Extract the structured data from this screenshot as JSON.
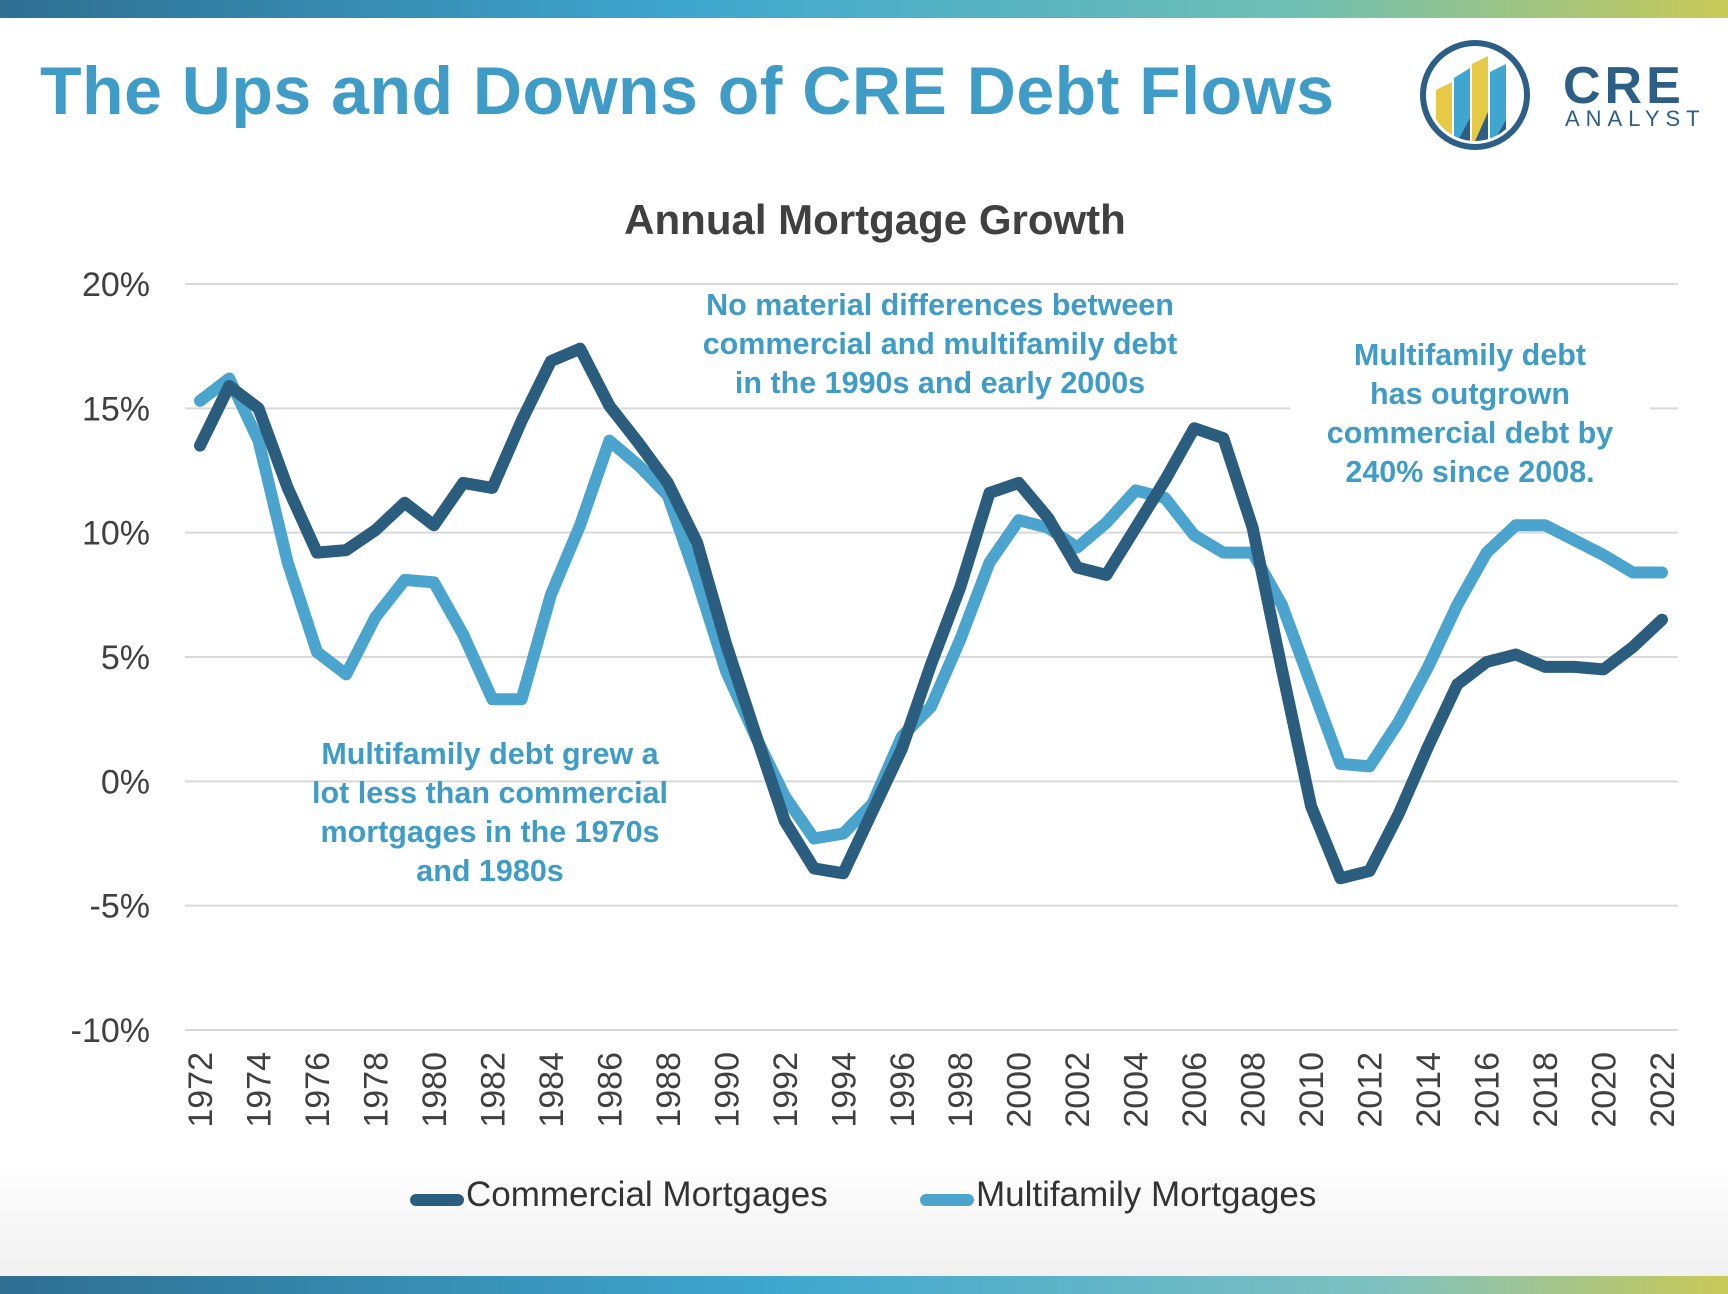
{
  "slide": {
    "title": "The Ups and Downs of CRE Debt Flows"
  },
  "logo": {
    "brand": "CRE",
    "tagline": "ANALYST",
    "colors": {
      "ring": "#2d5f86",
      "bars": [
        "#e6c945",
        "#3fa7cf",
        "#2d5f86"
      ]
    }
  },
  "chart_data": {
    "type": "line",
    "title": "Annual Mortgage Growth",
    "x": [
      1972,
      1973,
      1974,
      1975,
      1976,
      1977,
      1978,
      1979,
      1980,
      1981,
      1982,
      1983,
      1984,
      1985,
      1986,
      1987,
      1988,
      1989,
      1990,
      1991,
      1992,
      1993,
      1994,
      1995,
      1996,
      1997,
      1998,
      1999,
      2000,
      2001,
      2002,
      2003,
      2004,
      2005,
      2006,
      2007,
      2008,
      2009,
      2010,
      2011,
      2012,
      2013,
      2014,
      2015,
      2016,
      2017,
      2018,
      2019,
      2020,
      2021,
      2022
    ],
    "x_tick_labels": [
      "1972",
      "1974",
      "1976",
      "1978",
      "1980",
      "1982",
      "1984",
      "1986",
      "1988",
      "1990",
      "1992",
      "1994",
      "1996",
      "1998",
      "2000",
      "2002",
      "2004",
      "2006",
      "2008",
      "2010",
      "2012",
      "2014",
      "2016",
      "2018",
      "2020",
      "2022"
    ],
    "y_tick_labels": [
      "20%",
      "15%",
      "10%",
      "5%",
      "0%",
      "-5%",
      "-10%"
    ],
    "ylim": [
      -10,
      20
    ],
    "grid": true,
    "legend_position": "bottom",
    "series": [
      {
        "name": "Commercial Mortgages",
        "color": "#2b5d7e",
        "values": [
          13.5,
          15.9,
          15.0,
          11.8,
          9.2,
          9.3,
          10.1,
          11.2,
          10.3,
          12.0,
          11.8,
          14.5,
          16.9,
          17.4,
          15.1,
          13.6,
          12.0,
          9.6,
          5.5,
          1.9,
          -1.6,
          -3.5,
          -3.7,
          -1.2,
          1.3,
          4.7,
          7.8,
          11.6,
          12.0,
          10.6,
          8.6,
          8.3,
          10.2,
          12.1,
          14.2,
          13.8,
          10.2,
          4.5,
          -1.0,
          -3.9,
          -3.6,
          -1.3,
          1.4,
          3.9,
          4.8,
          5.1,
          4.6,
          4.6,
          4.5,
          5.4,
          6.5
        ]
      },
      {
        "name": "Multifamily Mortgages",
        "color": "#4aa4ce",
        "values": [
          15.3,
          16.2,
          13.7,
          8.8,
          5.2,
          4.3,
          6.6,
          8.1,
          8.0,
          5.9,
          3.3,
          3.3,
          7.5,
          10.3,
          13.7,
          12.7,
          11.5,
          8.1,
          4.4,
          1.8,
          -0.6,
          -2.3,
          -2.1,
          -0.9,
          1.8,
          3.0,
          5.7,
          8.8,
          10.5,
          10.2,
          9.4,
          10.4,
          11.7,
          11.4,
          9.9,
          9.2,
          9.2,
          7.1,
          3.9,
          0.7,
          0.6,
          2.4,
          4.6,
          7.1,
          9.2,
          10.3,
          10.3,
          9.7,
          9.1,
          8.4,
          8.4
        ]
      }
    ],
    "annotations": [
      {
        "id": "seventies",
        "lines": [
          "Multifamily debt grew a",
          "lot less than commercial",
          "mortgages in the 1970s",
          "and 1980s"
        ]
      },
      {
        "id": "nineties",
        "lines": [
          "No material differences between",
          "commercial and multifamily debt",
          "in the 1990s and early 2000s"
        ]
      },
      {
        "id": "since2008",
        "lines": [
          "Multifamily debt",
          "has outgrown",
          "commercial debt by",
          "240% since 2008."
        ]
      }
    ]
  }
}
